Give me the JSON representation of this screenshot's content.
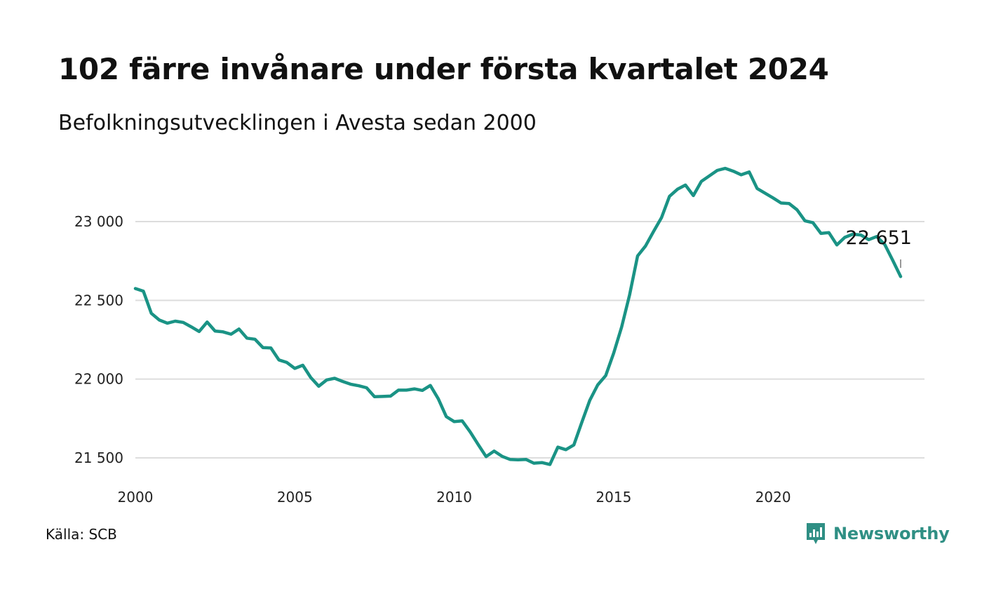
{
  "title": "102 färre invånare under första kvartalet 2024",
  "subtitle": "Befolkningsutvecklingen i Avesta sedan 2000",
  "source": "Källa: SCB",
  "brand": {
    "name": "Newsworthy",
    "icon": "newsworthy-logo-icon",
    "color": "#2f8f84"
  },
  "chart_data": {
    "type": "line",
    "line_color": "#1a9385",
    "grid": true,
    "xlim": [
      2000,
      2024.25
    ],
    "ylim": [
      21450,
      23400
    ],
    "x_ticks": [
      2000,
      2005,
      2010,
      2015,
      2020
    ],
    "x_tick_labels": [
      "2000",
      "2005",
      "2010",
      "2015",
      "2020"
    ],
    "y_ticks": [
      21500,
      22000,
      22500,
      23000
    ],
    "y_tick_labels": [
      "21 500",
      "22 000",
      "22 500",
      "23 000"
    ],
    "last_value_label": "22 651",
    "series": [
      {
        "x": [
          2000.0,
          2000.25,
          2000.5,
          2000.75,
          2001.0,
          2001.25,
          2001.5,
          2001.75,
          2002.0,
          2002.25,
          2002.5,
          2002.75,
          2003.0,
          2003.25,
          2003.5,
          2003.75,
          2004.0,
          2004.25,
          2004.5,
          2004.75,
          2005.0,
          2005.25,
          2005.5,
          2005.75,
          2006.0,
          2006.25,
          2006.5,
          2006.75,
          2007.0,
          2007.25,
          2007.5,
          2007.75,
          2008.0,
          2008.25,
          2008.5,
          2008.75,
          2009.0,
          2009.25,
          2009.5,
          2009.75,
          2010.0,
          2010.25,
          2010.5,
          2010.75,
          2011.0,
          2011.25,
          2011.5,
          2011.75,
          2012.0,
          2012.25,
          2012.5,
          2012.75,
          2013.0,
          2013.25,
          2013.5,
          2013.75,
          2014.0,
          2014.25,
          2014.5,
          2014.75,
          2015.0,
          2015.25,
          2015.5,
          2015.75,
          2016.0,
          2016.25,
          2016.5,
          2016.75,
          2017.0,
          2017.25,
          2017.5,
          2017.75,
          2018.0,
          2018.25,
          2018.5,
          2018.75,
          2019.0,
          2019.25,
          2019.5,
          2019.75,
          2020.0,
          2020.25,
          2020.5,
          2020.75,
          2021.0,
          2021.25,
          2021.5,
          2021.75,
          2022.0,
          2022.25,
          2022.5,
          2022.75,
          2023.0,
          2023.25,
          2023.5,
          2023.75,
          2024.0
        ],
        "values": [
          22575,
          22558,
          22418,
          22375,
          22355,
          22368,
          22360,
          22332,
          22302,
          22362,
          22305,
          22300,
          22285,
          22318,
          22260,
          22253,
          22200,
          22198,
          22122,
          22106,
          22068,
          22088,
          22010,
          21955,
          21995,
          22005,
          21985,
          21968,
          21958,
          21945,
          21888,
          21890,
          21892,
          21930,
          21930,
          21938,
          21928,
          21960,
          21875,
          21762,
          21730,
          21735,
          21665,
          21585,
          21508,
          21543,
          21510,
          21490,
          21488,
          21490,
          21466,
          21470,
          21458,
          21568,
          21552,
          21582,
          21725,
          21865,
          21963,
          22022,
          22165,
          22330,
          22535,
          22782,
          22845,
          22937,
          23025,
          23160,
          23205,
          23232,
          23165,
          23255,
          23290,
          23325,
          23338,
          23320,
          23297,
          23315,
          23210,
          23180,
          23150,
          23118,
          23115,
          23075,
          23005,
          22993,
          22925,
          22930,
          22852,
          22900,
          22920,
          22915,
          22885,
          22905,
          22855,
          22755,
          22651
        ]
      }
    ]
  }
}
